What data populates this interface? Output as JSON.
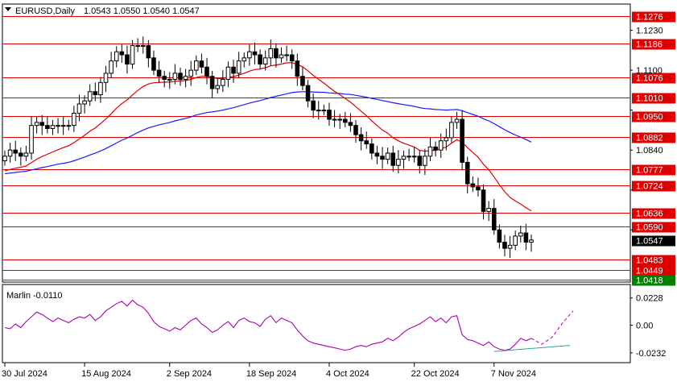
{
  "header": {
    "symbol": "EURUSD,Daily",
    "ohlc": "1.0543 1.0550 1.0540 1.0547"
  },
  "indicator": {
    "label": "Marlin -0.0110",
    "ticks": [
      "0.0228",
      "0.00",
      "-0.0232"
    ]
  },
  "colors": {
    "level_line": "#e00000",
    "level_badge": "#e00000",
    "support_line": "#008000",
    "support_badge": "#008000",
    "ma_fast": "#e00000",
    "ma_slow": "#1a1aff",
    "oscillator": "#b000b0",
    "osc_trend": "#2f9f9f",
    "price_badge": "#000000",
    "candle": "#000000",
    "bull_fill": "#ffffff"
  },
  "chart_data": [
    {
      "type": "candlestick",
      "title": "EURUSD,Daily",
      "x_ticks": [
        "30 Jul 2024",
        "15 Aug 2024",
        "2 Sep 2024",
        "18 Sep 2024",
        "4 Oct 2024",
        "22 Oct 2024",
        "7 Nov 2024"
      ],
      "y_range": [
        1.0418,
        1.1276
      ],
      "y_ticks": [
        "1.1230",
        "1.1100",
        "1.0970",
        "1.0840",
        "1.0710",
        "1.0580"
      ],
      "levels": [
        {
          "value": 1.1276,
          "label": "1.1276",
          "kind": "resistance"
        },
        {
          "value": 1.1186,
          "label": "1.1186",
          "kind": "resistance"
        },
        {
          "value": 1.1076,
          "label": "1.1076",
          "kind": "resistance"
        },
        {
          "value": 1.101,
          "label": "1.1010",
          "kind": "resistance"
        },
        {
          "value": 1.095,
          "label": "1.0950",
          "kind": "resistance"
        },
        {
          "value": 1.0882,
          "label": "1.0882",
          "kind": "resistance"
        },
        {
          "value": 1.0777,
          "label": "1.0777",
          "kind": "resistance"
        },
        {
          "value": 1.0724,
          "label": "1.0724",
          "kind": "resistance"
        },
        {
          "value": 1.0636,
          "label": "1.0636",
          "kind": "resistance"
        },
        {
          "value": 1.059,
          "label": "1.0590",
          "kind": "resistance"
        },
        {
          "value": 1.0483,
          "label": "1.0483",
          "kind": "support"
        },
        {
          "value": 1.0449,
          "label": "1.0449",
          "kind": "support"
        },
        {
          "value": 1.0418,
          "label": "1.0418",
          "kind": "support-green"
        }
      ],
      "current_price": {
        "value": 1.0547,
        "label": "1.0547"
      },
      "closes": [
        1.082,
        1.084,
        1.083,
        1.082,
        1.083,
        1.092,
        1.093,
        1.092,
        1.091,
        1.092,
        1.092,
        1.092,
        1.092,
        1.096,
        1.099,
        1.1,
        1.103,
        1.102,
        1.106,
        1.109,
        1.113,
        1.116,
        1.115,
        1.112,
        1.118,
        1.118,
        1.118,
        1.114,
        1.11,
        1.108,
        1.107,
        1.107,
        1.109,
        1.107,
        1.108,
        1.11,
        1.113,
        1.111,
        1.108,
        1.104,
        1.105,
        1.107,
        1.111,
        1.109,
        1.113,
        1.114,
        1.116,
        1.115,
        1.112,
        1.114,
        1.117,
        1.114,
        1.115,
        1.115,
        1.113,
        1.108,
        1.105,
        1.1,
        1.097,
        1.097,
        1.097,
        1.094,
        1.094,
        1.094,
        1.093,
        1.092,
        1.089,
        1.087,
        1.086,
        1.083,
        1.082,
        1.081,
        1.083,
        1.079,
        1.081,
        1.082,
        1.082,
        1.082,
        1.079,
        1.082,
        1.085,
        1.084,
        1.087,
        1.088,
        1.093,
        1.094,
        1.08,
        1.073,
        1.072,
        1.071,
        1.064,
        1.065,
        1.058,
        1.054,
        1.052,
        1.053,
        1.056,
        1.057,
        1.054,
        1.0547
      ],
      "ma_fast": [
        1.0772,
        1.0777,
        1.0781,
        1.0784,
        1.0788,
        1.0799,
        1.081,
        1.0819,
        1.0826,
        1.0834,
        1.0841,
        1.0848,
        1.0854,
        1.0864,
        1.0876,
        1.0888,
        1.0901,
        1.0912,
        1.0926,
        1.0941,
        1.0958,
        1.0976,
        1.0991,
        1.1003,
        1.1019,
        1.1034,
        1.1047,
        1.1055,
        1.1059,
        1.106,
        1.1061,
        1.1061,
        1.1064,
        1.1065,
        1.1066,
        1.107,
        1.1076,
        1.108,
        1.108,
        1.1076,
        1.1073,
        1.1073,
        1.1077,
        1.1079,
        1.1084,
        1.109,
        1.1097,
        1.1102,
        1.1104,
        1.1108,
        1.1114,
        1.1117,
        1.112,
        1.1124,
        1.1124,
        1.1119,
        1.1111,
        1.1098,
        1.1083,
        1.107,
        1.1058,
        1.1044,
        1.1031,
        1.102,
        1.1008,
        1.0996,
        1.0981,
        1.0966,
        1.0952,
        1.0935,
        1.092,
        1.0905,
        1.0895,
        1.088,
        1.087,
        1.0862,
        1.0856,
        1.085,
        1.0839,
        1.0836,
        1.0838,
        1.0839,
        1.0844,
        1.085,
        1.0862,
        1.0874,
        1.0865,
        1.0848,
        1.0832,
        1.0817,
        1.0794,
        1.0776,
        1.0752,
        1.0727,
        1.0704,
        1.0686,
        1.0674,
        1.0664,
        1.0652,
        1.0642
      ],
      "ma_slow": [
        1.0763,
        1.0765,
        1.0767,
        1.0769,
        1.0771,
        1.0775,
        1.0779,
        1.0783,
        1.0786,
        1.079,
        1.0794,
        1.0797,
        1.08,
        1.0805,
        1.0811,
        1.0817,
        1.0824,
        1.083,
        1.0837,
        1.0845,
        1.0854,
        1.0863,
        1.0872,
        1.0879,
        1.0888,
        1.0897,
        1.0905,
        1.0912,
        1.0917,
        1.0922,
        1.0926,
        1.093,
        1.0935,
        1.0939,
        1.0943,
        1.0948,
        1.0954,
        1.0958,
        1.0962,
        1.0964,
        1.0967,
        1.097,
        1.0974,
        1.0978,
        1.0983,
        1.0988,
        1.0993,
        1.0997,
        1.1001,
        1.1006,
        1.1011,
        1.1015,
        1.1019,
        1.1023,
        1.1027,
        1.1029,
        1.103,
        1.103,
        1.1029,
        1.1028,
        1.1028,
        1.1026,
        1.1025,
        1.1024,
        1.1022,
        1.1021,
        1.1018,
        1.1015,
        1.1012,
        1.1008,
        1.1005,
        1.1001,
        1.0998,
        1.0994,
        1.0991,
        1.0988,
        1.0985,
        1.0982,
        1.0978,
        1.0975,
        1.0974,
        1.0972,
        1.0971,
        1.097,
        1.0971,
        1.0972,
        1.0968,
        1.0962,
        1.0956,
        1.095,
        1.0942,
        1.0935,
        1.0926,
        1.0916,
        1.0906,
        1.0897,
        1.0889,
        1.0882,
        1.0874,
        1.0866
      ]
    },
    {
      "type": "line",
      "title": "Marlin -0.0110",
      "y_range": [
        -0.026,
        0.026
      ],
      "y_ticks": [
        "0.0228",
        "0.00",
        "-0.0232"
      ],
      "values": [
        -0.002,
        -0.003,
        0.001,
        -0.002,
        0.003,
        0.007,
        0.011,
        0.009,
        0.006,
        0.003,
        0.006,
        0.004,
        0.002,
        0.005,
        0.007,
        0.006,
        0.009,
        0.004,
        0.007,
        0.012,
        0.015,
        0.018,
        0.02,
        0.016,
        0.021,
        0.017,
        0.015,
        0.01,
        0.003,
        -0.001,
        -0.003,
        -0.005,
        -0.002,
        -0.004,
        0.0,
        0.004,
        0.006,
        0.001,
        -0.002,
        -0.006,
        -0.004,
        0.0,
        0.003,
        -0.002,
        0.004,
        0.006,
        0.003,
        0.002,
        -0.001,
        0.005,
        0.008,
        0.002,
        0.006,
        0.004,
        0.002,
        -0.004,
        -0.009,
        -0.013,
        -0.015,
        -0.016,
        -0.017,
        -0.018,
        -0.019,
        -0.02,
        -0.021,
        -0.02,
        -0.018,
        -0.017,
        -0.018,
        -0.016,
        -0.015,
        -0.014,
        -0.011,
        -0.013,
        -0.01,
        -0.006,
        -0.003,
        -0.001,
        0.001,
        0.004,
        0.007,
        0.003,
        0.006,
        0.002,
        0.007,
        0.008,
        -0.008,
        -0.012,
        -0.013,
        -0.015,
        -0.017,
        -0.014,
        -0.018,
        -0.02,
        -0.021,
        -0.02,
        -0.016,
        -0.011,
        -0.013,
        -0.011
      ],
      "forecast": [
        -0.011,
        -0.016,
        -0.01,
        0.002,
        0.012
      ],
      "trendline": [
        -0.022,
        -0.017
      ]
    }
  ]
}
